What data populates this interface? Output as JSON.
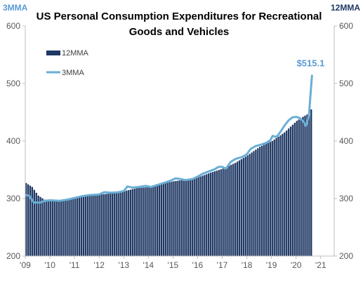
{
  "chart_data": {
    "type": "bar+line",
    "title_lines": [
      "US Personal Consumption Expenditures for Recreational",
      "Goods and Vehicles"
    ],
    "left_axis_title": "3MMA",
    "right_axis_title": "12MMA",
    "ylim": [
      200,
      600
    ],
    "yticks": [
      "200",
      "300",
      "400",
      "500",
      "600"
    ],
    "xlim": [
      2009,
      2021.55
    ],
    "xticks": [
      {
        "x": 2009,
        "label": "'09"
      },
      {
        "x": 2010,
        "label": "'10"
      },
      {
        "x": 2011,
        "label": "'11"
      },
      {
        "x": 2012,
        "label": "'12"
      },
      {
        "x": 2013,
        "label": "'13"
      },
      {
        "x": 2014,
        "label": "'14"
      },
      {
        "x": 2015,
        "label": "'15"
      },
      {
        "x": 2016,
        "label": "'16"
      },
      {
        "x": 2017,
        "label": "'17"
      },
      {
        "x": 2018,
        "label": "'18"
      },
      {
        "x": 2019,
        "label": "'19"
      },
      {
        "x": 2020,
        "label": "'20"
      },
      {
        "x": 2021,
        "label": "'21"
      }
    ],
    "legend": {
      "placement": "top-left",
      "entries": [
        "12MMA",
        "3MMA"
      ]
    },
    "annotation": {
      "text": "$515.1",
      "x": 2020.65,
      "y": 515.1
    },
    "colors": {
      "bar": "#1f3864",
      "line": "#6aaed6",
      "annotation": "#5b9bd5",
      "left_title": "#5b9bd5",
      "right_title": "#1f3864",
      "axis": "#bfbfbf"
    },
    "series": [
      {
        "name": "12MMA",
        "kind": "bar",
        "anchors": [
          [
            2009.0,
            327
          ],
          [
            2009.25,
            320
          ],
          [
            2009.5,
            305
          ],
          [
            2009.75,
            298
          ],
          [
            2010.0,
            297
          ],
          [
            2010.5,
            297
          ],
          [
            2011.0,
            300
          ],
          [
            2011.5,
            305
          ],
          [
            2012.0,
            307
          ],
          [
            2012.5,
            309
          ],
          [
            2013.0,
            313
          ],
          [
            2013.5,
            318
          ],
          [
            2014.0,
            320
          ],
          [
            2014.5,
            325
          ],
          [
            2015.0,
            330
          ],
          [
            2015.5,
            333
          ],
          [
            2016.0,
            337
          ],
          [
            2016.5,
            345
          ],
          [
            2017.0,
            352
          ],
          [
            2017.5,
            362
          ],
          [
            2018.0,
            375
          ],
          [
            2018.5,
            390
          ],
          [
            2019.0,
            400
          ],
          [
            2019.5,
            415
          ],
          [
            2019.75,
            425
          ],
          [
            2020.0,
            435
          ],
          [
            2020.25,
            442
          ],
          [
            2020.5,
            448
          ],
          [
            2020.62,
            458
          ]
        ]
      },
      {
        "name": "3MMA",
        "kind": "line",
        "points": [
          [
            2009.0,
            306
          ],
          [
            2009.15,
            305
          ],
          [
            2009.35,
            293
          ],
          [
            2009.6,
            293
          ],
          [
            2009.8,
            296
          ],
          [
            2010.0,
            297
          ],
          [
            2010.4,
            296
          ],
          [
            2010.7,
            298
          ],
          [
            2011.0,
            301
          ],
          [
            2011.3,
            304
          ],
          [
            2011.6,
            306
          ],
          [
            2012.0,
            307
          ],
          [
            2012.2,
            311
          ],
          [
            2012.5,
            310
          ],
          [
            2012.8,
            311
          ],
          [
            2013.0,
            313
          ],
          [
            2013.15,
            321
          ],
          [
            2013.35,
            319
          ],
          [
            2013.6,
            320
          ],
          [
            2013.9,
            322
          ],
          [
            2014.1,
            320
          ],
          [
            2014.4,
            324
          ],
          [
            2014.7,
            328
          ],
          [
            2014.9,
            331
          ],
          [
            2015.1,
            335
          ],
          [
            2015.3,
            334
          ],
          [
            2015.5,
            332
          ],
          [
            2015.8,
            334
          ],
          [
            2016.0,
            338
          ],
          [
            2016.2,
            343
          ],
          [
            2016.45,
            347
          ],
          [
            2016.7,
            351
          ],
          [
            2016.85,
            355
          ],
          [
            2017.0,
            355
          ],
          [
            2017.15,
            352
          ],
          [
            2017.35,
            364
          ],
          [
            2017.55,
            369
          ],
          [
            2017.8,
            372
          ],
          [
            2018.0,
            377
          ],
          [
            2018.15,
            386
          ],
          [
            2018.35,
            391
          ],
          [
            2018.6,
            394
          ],
          [
            2018.8,
            397
          ],
          [
            2018.95,
            401
          ],
          [
            2019.05,
            409
          ],
          [
            2019.2,
            407
          ],
          [
            2019.35,
            415
          ],
          [
            2019.55,
            428
          ],
          [
            2019.7,
            436
          ],
          [
            2019.85,
            441
          ],
          [
            2020.0,
            442
          ],
          [
            2020.15,
            440
          ],
          [
            2020.3,
            434
          ],
          [
            2020.4,
            426
          ],
          [
            2020.48,
            437
          ],
          [
            2020.53,
            448
          ],
          [
            2020.6,
            488
          ],
          [
            2020.65,
            515.1
          ]
        ]
      }
    ]
  }
}
